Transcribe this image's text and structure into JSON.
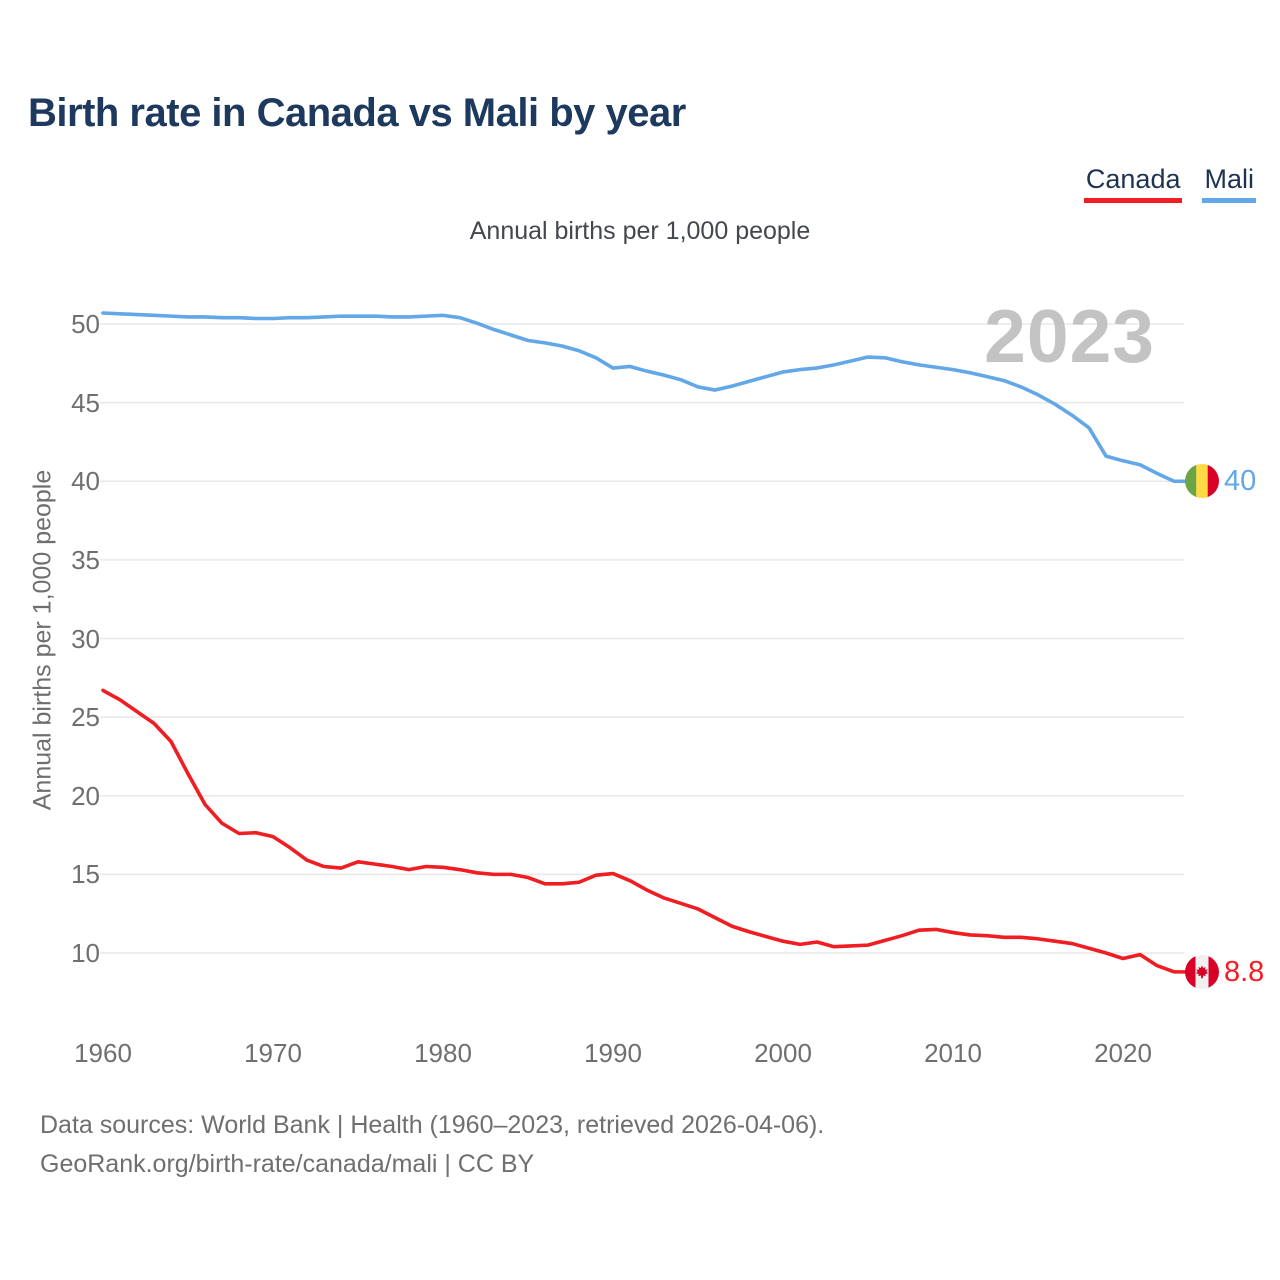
{
  "header": {
    "title": "Birth rate in Canada vs Mali by year",
    "subtitle": "Annual births per 1,000 people"
  },
  "legend": [
    {
      "label": "Canada",
      "color": "#f01d23"
    },
    {
      "label": "Mali",
      "color": "#62a7e7"
    }
  ],
  "watermark": "2023",
  "y_axis": {
    "label": "Annual births per 1,000 people",
    "ticks": [
      10,
      15,
      20,
      25,
      30,
      35,
      40,
      45,
      50
    ]
  },
  "x_axis": {
    "ticks": [
      1960,
      1970,
      1980,
      1990,
      2000,
      2010,
      2020
    ]
  },
  "end_labels": [
    {
      "series": "Mali",
      "value": "40",
      "flag": "mali-flag",
      "color": "#62a7e7"
    },
    {
      "series": "Canada",
      "value": "8.8",
      "flag": "canada-flag",
      "color": "#f01d23"
    }
  ],
  "footer": {
    "line1": "Data sources: World Bank | Health (1960–2023, retrieved 2026-04-06).",
    "line2": "GeoRank.org/birth-rate/canada/mali | CC BY"
  },
  "flag_colors": {
    "mali": {
      "green": "#6DA544",
      "yellow": "#FFDA44",
      "red": "#D80027"
    },
    "canada": {
      "red": "#D80027",
      "white": "#F0F0F0"
    }
  },
  "chart_data": {
    "type": "line",
    "title": "Birth rate in Canada vs Mali by year",
    "subtitle": "Annual births per 1,000 people",
    "xlabel": "",
    "ylabel": "Annual births per 1,000 people",
    "xlim": [
      1960,
      2023
    ],
    "ylim": [
      8,
      52
    ],
    "grid": "horizontal",
    "legend_position": "top-right",
    "annotation": "2023",
    "x": [
      1960,
      1961,
      1962,
      1963,
      1964,
      1965,
      1966,
      1967,
      1968,
      1969,
      1970,
      1971,
      1972,
      1973,
      1974,
      1975,
      1976,
      1977,
      1978,
      1979,
      1980,
      1981,
      1982,
      1983,
      1984,
      1985,
      1986,
      1987,
      1988,
      1989,
      1990,
      1991,
      1992,
      1993,
      1994,
      1995,
      1996,
      1997,
      1998,
      1999,
      2000,
      2001,
      2002,
      2003,
      2004,
      2005,
      2006,
      2007,
      2008,
      2009,
      2010,
      2011,
      2012,
      2013,
      2014,
      2015,
      2016,
      2017,
      2018,
      2019,
      2020,
      2021,
      2022,
      2023
    ],
    "series": [
      {
        "name": "Canada",
        "color": "#f01d23",
        "values": [
          26.7,
          26.1,
          25.35,
          24.6,
          23.45,
          21.4,
          19.45,
          18.25,
          17.6,
          17.65,
          17.4,
          16.7,
          15.9,
          15.5,
          15.4,
          15.8,
          15.65,
          15.5,
          15.3,
          15.5,
          15.45,
          15.3,
          15.1,
          15.0,
          15.0,
          14.8,
          14.4,
          14.4,
          14.5,
          14.95,
          15.05,
          14.6,
          14.0,
          13.5,
          13.15,
          12.8,
          12.25,
          11.7,
          11.35,
          11.05,
          10.75,
          10.55,
          10.7,
          10.4,
          10.45,
          10.5,
          10.8,
          11.1,
          11.45,
          11.5,
          11.3,
          11.15,
          11.1,
          11.0,
          11.0,
          10.9,
          10.75,
          10.6,
          10.3,
          10.0,
          9.65,
          9.9,
          9.2,
          8.8
        ]
      },
      {
        "name": "Mali",
        "color": "#62a7e7",
        "values": [
          50.7,
          50.65,
          50.6,
          50.55,
          50.5,
          50.45,
          50.45,
          50.4,
          50.4,
          50.35,
          50.35,
          50.4,
          50.4,
          50.45,
          50.5,
          50.5,
          50.5,
          50.45,
          50.45,
          50.5,
          50.55,
          50.4,
          50.05,
          49.65,
          49.3,
          48.95,
          48.8,
          48.6,
          48.3,
          47.85,
          47.2,
          47.3,
          47.0,
          46.75,
          46.45,
          46.0,
          45.8,
          46.05,
          46.35,
          46.65,
          46.95,
          47.1,
          47.2,
          47.4,
          47.65,
          47.9,
          47.85,
          47.6,
          47.4,
          47.25,
          47.1,
          46.9,
          46.65,
          46.4,
          46.0,
          45.5,
          44.9,
          44.2,
          43.4,
          41.6,
          41.3,
          41.05,
          40.5,
          40.0
        ]
      }
    ]
  }
}
